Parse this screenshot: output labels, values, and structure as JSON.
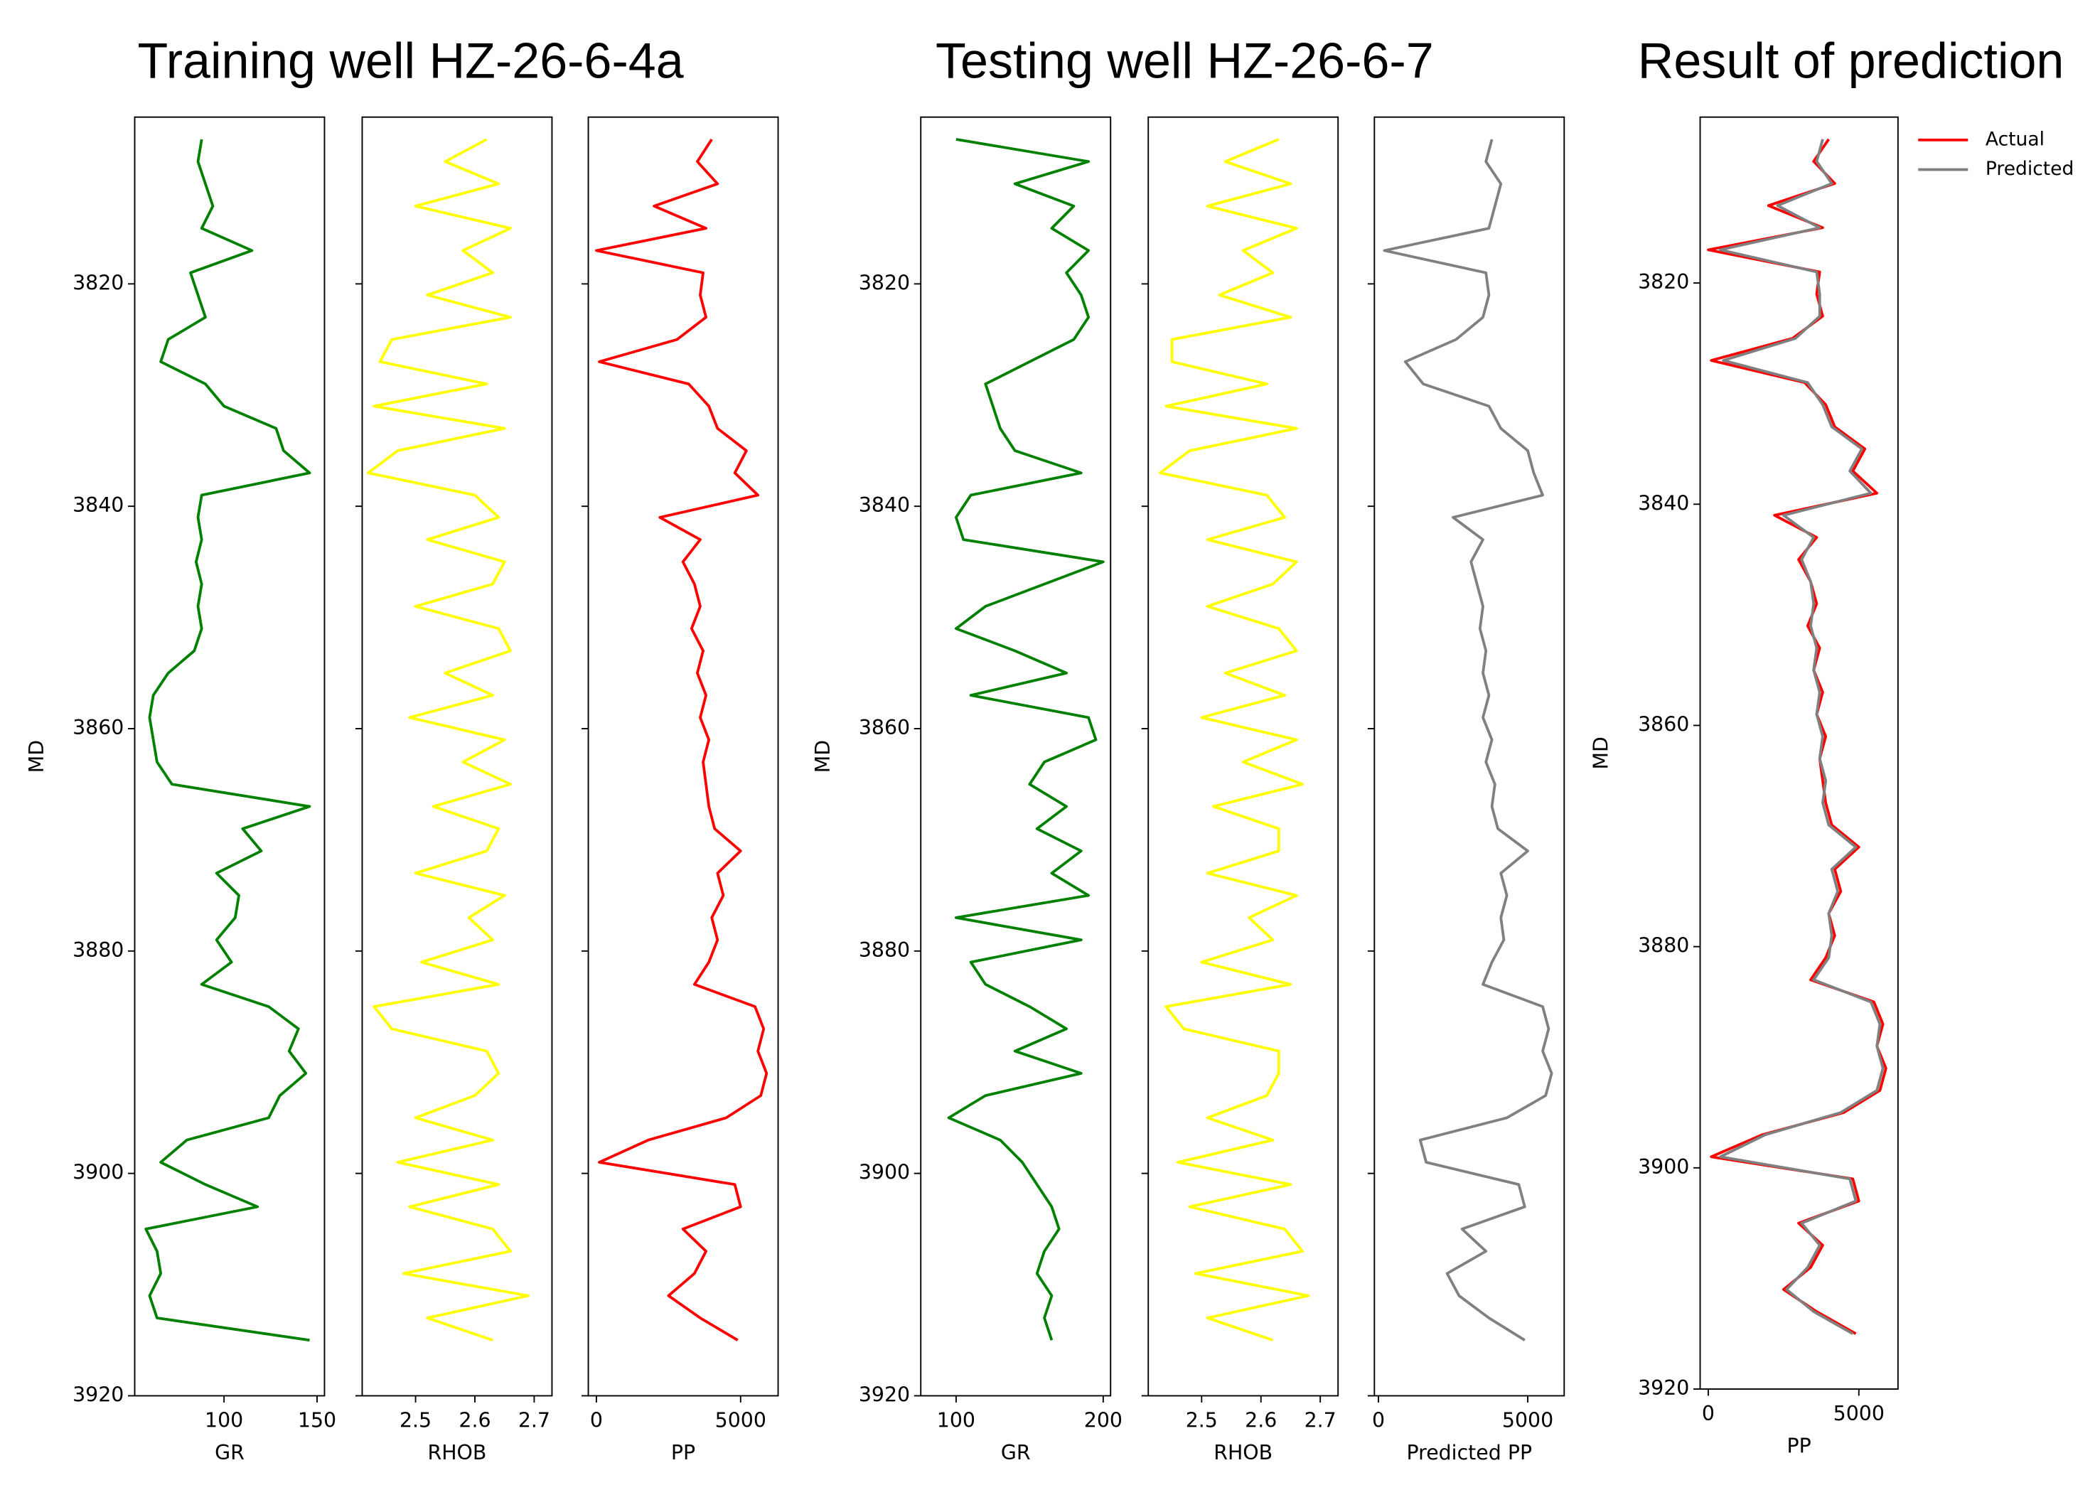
{
  "chart_data": [
    {
      "type": "line",
      "title": "Training well HZ-26-6-4a",
      "ylabel": "MD",
      "ylim": [
        3920,
        3805
      ],
      "yticks": [
        3820,
        3840,
        3860,
        3880,
        3900,
        3920
      ],
      "y": [
        3807,
        3809,
        3811,
        3813,
        3815,
        3817,
        3819,
        3821,
        3823,
        3825,
        3827,
        3829,
        3831,
        3833,
        3835,
        3837,
        3839,
        3841,
        3843,
        3845,
        3847,
        3849,
        3851,
        3853,
        3855,
        3857,
        3859,
        3861,
        3863,
        3865,
        3867,
        3869,
        3871,
        3873,
        3875,
        3877,
        3879,
        3881,
        3883,
        3885,
        3887,
        3889,
        3891,
        3893,
        3895,
        3897,
        3899,
        3901,
        3903,
        3905,
        3907,
        3909,
        3911,
        3913,
        3915
      ],
      "tracks": [
        {
          "xlabel": "GR",
          "xlim": [
            52,
            154
          ],
          "xticks": [
            100,
            150
          ],
          "series": [
            {
              "color": "#008000",
              "values": [
                88,
                86,
                90,
                94,
                88,
                115,
                82,
                86,
                90,
                70,
                66,
                90,
                100,
                128,
                132,
                146,
                88,
                86,
                88,
                85,
                88,
                86,
                88,
                84,
                70,
                62,
                60,
                62,
                64,
                72,
                146,
                110,
                120,
                96,
                108,
                106,
                96,
                104,
                88,
                124,
                140,
                135,
                144,
                130,
                124,
                80,
                66,
                90,
                118,
                58,
                64,
                66,
                60,
                64,
                146
              ]
            }
          ]
        },
        {
          "xlabel": "RHOB",
          "xlim": [
            2.41,
            2.73
          ],
          "xticks": [
            2.5,
            2.6,
            2.7
          ],
          "series": [
            {
              "color": "#ffff00",
              "values": [
                2.62,
                2.55,
                2.64,
                2.5,
                2.66,
                2.58,
                2.63,
                2.52,
                2.66,
                2.46,
                2.44,
                2.62,
                2.43,
                2.65,
                2.47,
                2.42,
                2.6,
                2.64,
                2.52,
                2.65,
                2.63,
                2.5,
                2.64,
                2.66,
                2.55,
                2.63,
                2.49,
                2.65,
                2.58,
                2.66,
                2.53,
                2.64,
                2.62,
                2.5,
                2.65,
                2.59,
                2.63,
                2.51,
                2.64,
                2.43,
                2.46,
                2.62,
                2.64,
                2.6,
                2.5,
                2.63,
                2.47,
                2.64,
                2.49,
                2.63,
                2.66,
                2.48,
                2.69,
                2.52,
                2.63
              ]
            }
          ]
        },
        {
          "xlabel": "PP",
          "xlim": [
            -280,
            6300
          ],
          "xticks": [
            0,
            5000
          ],
          "series": [
            {
              "color": "#ff0000",
              "values": [
                4000,
                3500,
                4200,
                2000,
                3800,
                0,
                3700,
                3600,
                3800,
                2800,
                100,
                3200,
                3900,
                4200,
                5200,
                4800,
                5600,
                2200,
                3600,
                3000,
                3400,
                3600,
                3300,
                3700,
                3500,
                3800,
                3600,
                3900,
                3700,
                3800,
                3900,
                4100,
                5000,
                4200,
                4400,
                4000,
                4200,
                3900,
                3400,
                5500,
                5800,
                5600,
                5900,
                5700,
                4500,
                1800,
                100,
                4800,
                5000,
                3000,
                3800,
                3400,
                2500,
                3600,
                4900
              ]
            }
          ]
        }
      ]
    },
    {
      "type": "line",
      "title": "Testing well HZ-26-6-7",
      "ylabel": "MD",
      "ylim": [
        3920,
        3805
      ],
      "yticks": [
        3820,
        3840,
        3860,
        3880,
        3900,
        3920
      ],
      "y": [
        3807,
        3809,
        3811,
        3813,
        3815,
        3817,
        3819,
        3821,
        3823,
        3825,
        3827,
        3829,
        3831,
        3833,
        3835,
        3837,
        3839,
        3841,
        3843,
        3845,
        3847,
        3849,
        3851,
        3853,
        3855,
        3857,
        3859,
        3861,
        3863,
        3865,
        3867,
        3869,
        3871,
        3873,
        3875,
        3877,
        3879,
        3881,
        3883,
        3885,
        3887,
        3889,
        3891,
        3893,
        3895,
        3897,
        3899,
        3901,
        3903,
        3905,
        3907,
        3909,
        3911,
        3913,
        3915
      ],
      "tracks": [
        {
          "xlabel": "GR",
          "xlim": [
            76,
            205
          ],
          "xticks": [
            100,
            200
          ],
          "series": [
            {
              "color": "#008000",
              "values": [
                100,
                190,
                140,
                180,
                165,
                190,
                175,
                185,
                190,
                180,
                150,
                120,
                125,
                130,
                140,
                185,
                110,
                100,
                105,
                200,
                160,
                120,
                100,
                140,
                175,
                110,
                190,
                195,
                160,
                150,
                175,
                155,
                185,
                165,
                190,
                100,
                185,
                110,
                120,
                150,
                175,
                140,
                185,
                120,
                95,
                130,
                145,
                155,
                165,
                170,
                160,
                155,
                165,
                160,
                165
              ]
            }
          ]
        },
        {
          "xlabel": "RHOB",
          "xlim": [
            2.41,
            2.73
          ],
          "xticks": [
            2.5,
            2.6,
            2.7
          ],
          "series": [
            {
              "color": "#ffff00",
              "values": [
                2.63,
                2.54,
                2.65,
                2.51,
                2.66,
                2.57,
                2.62,
                2.53,
                2.65,
                2.45,
                2.45,
                2.61,
                2.44,
                2.66,
                2.48,
                2.43,
                2.61,
                2.64,
                2.51,
                2.66,
                2.62,
                2.51,
                2.63,
                2.66,
                2.54,
                2.64,
                2.5,
                2.66,
                2.57,
                2.67,
                2.52,
                2.63,
                2.63,
                2.51,
                2.66,
                2.58,
                2.62,
                2.5,
                2.65,
                2.44,
                2.47,
                2.63,
                2.63,
                2.61,
                2.51,
                2.62,
                2.46,
                2.65,
                2.48,
                2.64,
                2.67,
                2.49,
                2.68,
                2.51,
                2.62
              ]
            }
          ]
        },
        {
          "xlabel": "Predicted PP",
          "xlim": [
            -135,
            6220
          ],
          "xticks": [
            0,
            5000
          ],
          "series": [
            {
              "color": "#808080",
              "values": [
                3800,
                3600,
                4100,
                3900,
                3700,
                200,
                3600,
                3700,
                3500,
                2600,
                900,
                1500,
                3700,
                4100,
                5000,
                5200,
                5500,
                2500,
                3500,
                3100,
                3300,
                3500,
                3400,
                3600,
                3500,
                3700,
                3500,
                3800,
                3600,
                3900,
                3800,
                4000,
                5000,
                4100,
                4300,
                4100,
                4200,
                3800,
                3500,
                5500,
                5700,
                5500,
                5800,
                5600,
                4300,
                1400,
                1600,
                4700,
                4900,
                2800,
                3600,
                2300,
                2700,
                3700,
                4900
              ]
            }
          ]
        }
      ]
    },
    {
      "type": "line",
      "title": "Result of prediction",
      "ylabel": "MD",
      "ylim": [
        3920,
        3805
      ],
      "yticks": [
        3820,
        3840,
        3860,
        3880,
        3900,
        3920
      ],
      "legend": "outside upper right",
      "y": [
        3807,
        3809,
        3811,
        3813,
        3815,
        3817,
        3819,
        3821,
        3823,
        3825,
        3827,
        3829,
        3831,
        3833,
        3835,
        3837,
        3839,
        3841,
        3843,
        3845,
        3847,
        3849,
        3851,
        3853,
        3855,
        3857,
        3859,
        3861,
        3863,
        3865,
        3867,
        3869,
        3871,
        3873,
        3875,
        3877,
        3879,
        3881,
        3883,
        3885,
        3887,
        3889,
        3891,
        3893,
        3895,
        3897,
        3899,
        3901,
        3903,
        3905,
        3907,
        3909,
        3911,
        3913,
        3915
      ],
      "tracks": [
        {
          "xlabel": "PP",
          "xlim": [
            -270,
            6300
          ],
          "xticks": [
            0,
            5000
          ],
          "series": [
            {
              "name": "Actual",
              "color": "#ff0000",
              "values": [
                4000,
                3500,
                4200,
                2000,
                3800,
                0,
                3700,
                3600,
                3800,
                2800,
                100,
                3200,
                3900,
                4200,
                5200,
                4800,
                5600,
                2200,
                3600,
                3000,
                3400,
                3600,
                3300,
                3700,
                3500,
                3800,
                3600,
                3900,
                3700,
                3800,
                3900,
                4100,
                5000,
                4200,
                4400,
                4000,
                4200,
                3900,
                3400,
                5500,
                5800,
                5600,
                5900,
                5700,
                4500,
                1800,
                100,
                4800,
                5000,
                3000,
                3800,
                3400,
                2500,
                3600,
                4900
              ]
            },
            {
              "name": "Predicted",
              "color": "#808080",
              "values": [
                3800,
                3600,
                4100,
                2300,
                3700,
                400,
                3600,
                3700,
                3700,
                2900,
                500,
                3300,
                3800,
                4100,
                5100,
                4700,
                5400,
                2500,
                3500,
                3100,
                3400,
                3500,
                3400,
                3600,
                3500,
                3700,
                3600,
                3800,
                3700,
                3900,
                3800,
                4000,
                4900,
                4100,
                4300,
                4000,
                4100,
                4000,
                3500,
                5400,
                5700,
                5600,
                5800,
                5600,
                4400,
                1900,
                400,
                4700,
                4900,
                3100,
                3700,
                3300,
                2600,
                3500,
                4800
              ]
            }
          ]
        }
      ]
    }
  ]
}
